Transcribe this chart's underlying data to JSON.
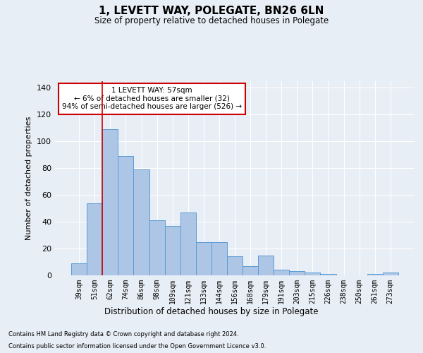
{
  "title": "1, LEVETT WAY, POLEGATE, BN26 6LN",
  "subtitle": "Size of property relative to detached houses in Polegate",
  "xlabel": "Distribution of detached houses by size in Polegate",
  "ylabel": "Number of detached properties",
  "categories": [
    "39sqm",
    "51sqm",
    "62sqm",
    "74sqm",
    "86sqm",
    "98sqm",
    "109sqm",
    "121sqm",
    "133sqm",
    "144sqm",
    "156sqm",
    "168sqm",
    "179sqm",
    "191sqm",
    "203sqm",
    "215sqm",
    "226sqm",
    "238sqm",
    "250sqm",
    "261sqm",
    "273sqm"
  ],
  "values": [
    9,
    54,
    109,
    89,
    79,
    41,
    37,
    47,
    25,
    25,
    14,
    7,
    15,
    4,
    3,
    2,
    1,
    0,
    0,
    1,
    2
  ],
  "bar_color": "#adc6e5",
  "bar_edge_color": "#5b9bd5",
  "background_color": "#e8eef5",
  "grid_color": "#ffffff",
  "vline_x_idx": 1,
  "vline_color": "#cc0000",
  "annotation_text": "1 LEVETT WAY: 57sqm\n← 6% of detached houses are smaller (32)\n94% of semi-detached houses are larger (526) →",
  "annotation_box_color": "#ffffff",
  "annotation_box_edge_color": "#cc0000",
  "ylim": [
    0,
    145
  ],
  "yticks": [
    0,
    20,
    40,
    60,
    80,
    100,
    120,
    140
  ],
  "footnote1": "Contains HM Land Registry data © Crown copyright and database right 2024.",
  "footnote2": "Contains public sector information licensed under the Open Government Licence v3.0."
}
